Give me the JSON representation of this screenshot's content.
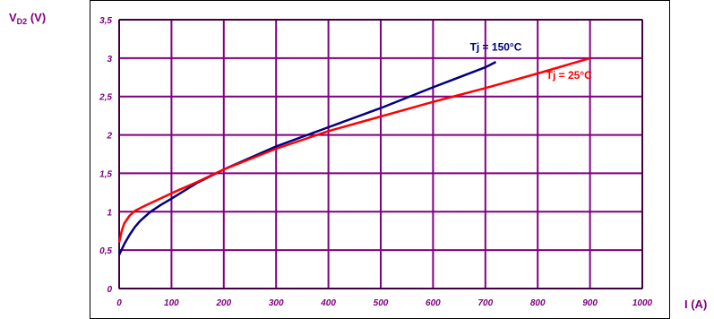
{
  "chart_data": {
    "type": "line",
    "ylabel_main": "V",
    "ylabel_sub": "D2",
    "ylabel_unit": "(V)",
    "xlabel": "I (A)",
    "xlim": [
      0,
      1000
    ],
    "ylim": [
      0,
      3.5
    ],
    "x_ticks": [
      "0",
      "100",
      "200",
      "300",
      "400",
      "500",
      "600",
      "700",
      "800",
      "900",
      "1000"
    ],
    "y_ticks": [
      "0",
      "0,5",
      "1",
      "1,5",
      "2",
      "2,5",
      "3",
      "3,5"
    ],
    "grid": true,
    "series": [
      {
        "name": "Tj = 150°C",
        "color": "#000080",
        "points": [
          [
            0,
            0.44
          ],
          [
            10,
            0.58
          ],
          [
            20,
            0.7
          ],
          [
            30,
            0.8
          ],
          [
            40,
            0.88
          ],
          [
            60,
            1.0
          ],
          [
            80,
            1.09
          ],
          [
            100,
            1.17
          ],
          [
            150,
            1.38
          ],
          [
            200,
            1.55
          ],
          [
            300,
            1.85
          ],
          [
            400,
            2.1
          ],
          [
            500,
            2.35
          ],
          [
            600,
            2.62
          ],
          [
            700,
            2.88
          ],
          [
            720,
            2.95
          ]
        ]
      },
      {
        "name": "Tj = 25°C",
        "color": "#ff0000",
        "points": [
          [
            0,
            0.6
          ],
          [
            5,
            0.75
          ],
          [
            10,
            0.85
          ],
          [
            20,
            0.95
          ],
          [
            30,
            1.01
          ],
          [
            50,
            1.08
          ],
          [
            75,
            1.16
          ],
          [
            100,
            1.24
          ],
          [
            150,
            1.39
          ],
          [
            200,
            1.55
          ],
          [
            300,
            1.82
          ],
          [
            400,
            2.05
          ],
          [
            500,
            2.24
          ],
          [
            600,
            2.43
          ],
          [
            700,
            2.61
          ],
          [
            800,
            2.8
          ],
          [
            900,
            3.0
          ]
        ]
      }
    ],
    "legend": [
      {
        "label": "Tj = 150°C",
        "color": "#000080",
        "x": 720,
        "y": 3.1
      },
      {
        "label": "Tj = 25°C",
        "color": "#ff0000",
        "x": 860,
        "y": 2.73
      }
    ]
  },
  "colors": {
    "grid": "#800080",
    "axis_text": "#800080",
    "frame": "#000000",
    "plot_border": "#000000"
  }
}
